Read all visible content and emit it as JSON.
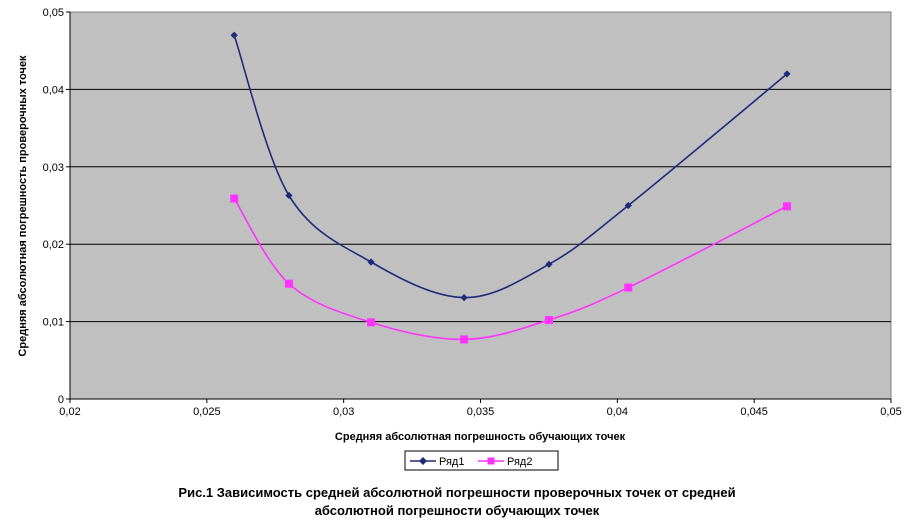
{
  "chart_data": {
    "type": "line",
    "xlabel": "Средняя абсолютная погрешность обучающих точек",
    "ylabel": "Средняя абсолютная погрешность проверочных точек",
    "xlim": [
      0.02,
      0.05
    ],
    "ylim": [
      0,
      0.05
    ],
    "x_ticks": [
      "0,02",
      "0,025",
      "0,03",
      "0,035",
      "0,04",
      "0,045",
      "0,05"
    ],
    "y_ticks": [
      "0",
      "0,01",
      "0,02",
      "0,03",
      "0,04",
      "0,05"
    ],
    "grid": "horizontal",
    "legend_position": "bottom",
    "series": [
      {
        "name": "Ряд1",
        "color": "#1f2a7a",
        "marker": "diamond",
        "x": [
          0.026,
          0.028,
          0.031,
          0.0344,
          0.0375,
          0.0404,
          0.0462
        ],
        "y": [
          0.047,
          0.0263,
          0.0177,
          0.0131,
          0.0174,
          0.025,
          0.042
        ]
      },
      {
        "name": "Ряд2",
        "color": "#ff33ff",
        "marker": "square",
        "x": [
          0.026,
          0.028,
          0.031,
          0.0344,
          0.0375,
          0.0404,
          0.0462
        ],
        "y": [
          0.0259,
          0.0149,
          0.0099,
          0.0077,
          0.0102,
          0.0144,
          0.0249
        ]
      }
    ]
  },
  "caption": {
    "line1": "Рис.1 Зависимость средней абсолютной погрешности проверочных точек от средней",
    "line2": "абсолютной погрешности  обучающих точек"
  }
}
